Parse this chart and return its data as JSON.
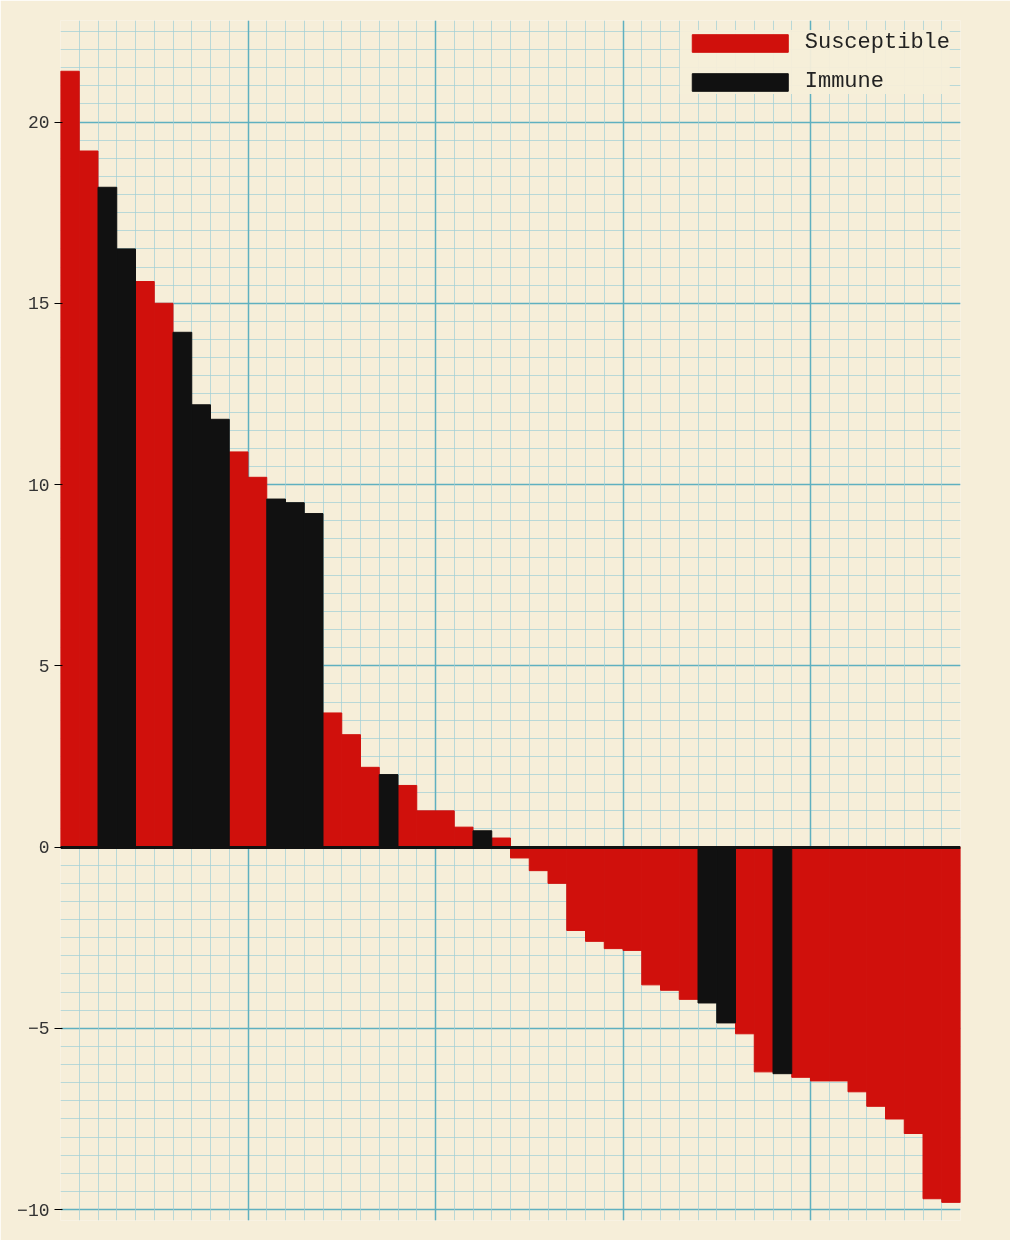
{
  "chart_data": {
    "type": "bar",
    "categories": [
      null,
      null,
      null,
      null,
      null,
      null,
      null,
      null,
      null,
      null,
      null,
      null,
      null,
      null,
      null,
      null,
      null,
      null,
      null,
      null,
      null,
      null,
      null,
      null,
      null,
      null,
      null,
      null,
      null,
      null,
      null,
      null,
      null,
      null,
      null,
      null,
      null,
      null,
      null,
      null,
      null,
      null,
      null,
      null,
      null,
      null,
      null,
      null
    ],
    "series": [
      {
        "name": "Susceptible",
        "color": "#d0100c",
        "values": [
          21.4,
          19.2,
          null,
          null,
          15.6,
          15.0,
          null,
          null,
          null,
          10.9,
          10.2,
          null,
          null,
          null,
          3.7,
          3.1,
          2.2,
          null,
          1.7,
          1.0,
          1.0,
          0.55,
          null,
          0.25,
          -0.3,
          -0.65,
          -1.0,
          -2.3,
          -2.6,
          -2.8,
          -2.85,
          -3.8,
          -3.95,
          -4.2,
          null,
          null,
          -5.15,
          -6.2,
          null,
          -6.35,
          -6.45,
          -6.45,
          -6.75,
          -7.15,
          -7.5,
          -7.9,
          -9.7,
          -9.8
        ]
      },
      {
        "name": "Immune",
        "color": "#111111",
        "values": [
          null,
          null,
          18.2,
          16.5,
          null,
          null,
          14.2,
          12.2,
          11.8,
          null,
          null,
          9.6,
          9.5,
          9.2,
          null,
          null,
          null,
          2.0,
          null,
          null,
          null,
          null,
          0.45,
          null,
          null,
          null,
          null,
          null,
          null,
          null,
          null,
          null,
          null,
          null,
          -4.3,
          -4.85,
          null,
          null,
          -6.25,
          null,
          null,
          null,
          null,
          null,
          null,
          null,
          null,
          null
        ]
      }
    ],
    "stacked": true,
    "ylim": [
      -10.3,
      22.8
    ],
    "yticks": [
      -10,
      -5,
      0,
      5,
      10,
      15,
      20
    ],
    "grid": true,
    "legend": "top right"
  }
}
